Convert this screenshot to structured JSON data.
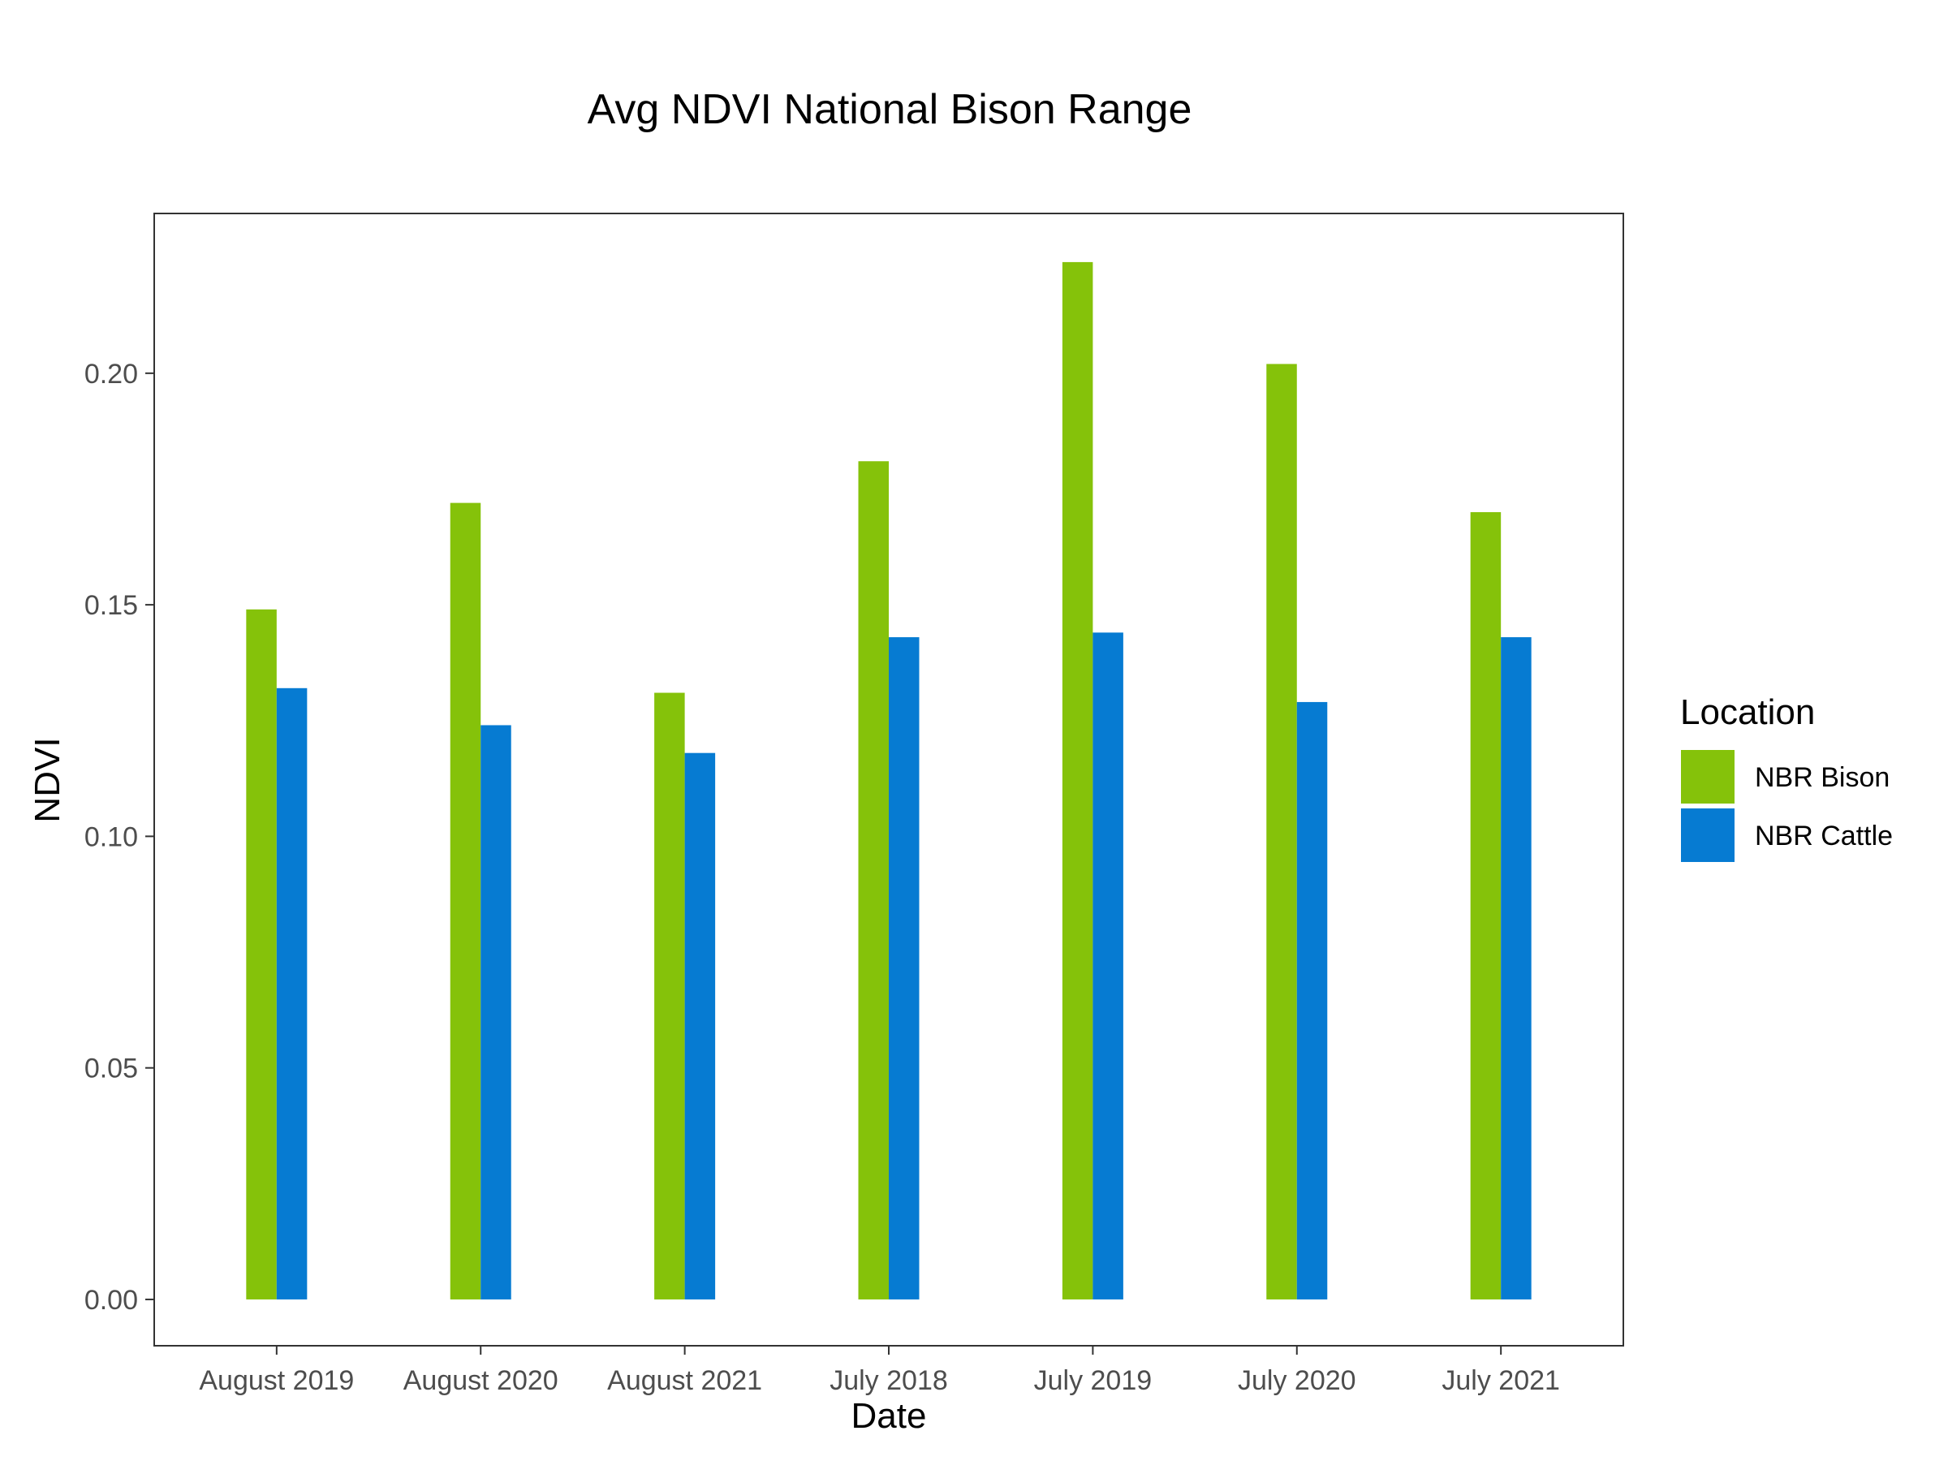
{
  "chart_data": {
    "type": "bar",
    "title": "Avg NDVI National Bison Range",
    "xlabel": "Date",
    "ylabel": "NDVI",
    "categories": [
      "August 2019",
      "August 2020",
      "August 2021",
      "July 2018",
      "July 2019",
      "July 2020",
      "July 2021"
    ],
    "series": [
      {
        "name": "NBR Bison",
        "color": "#85c20a",
        "values": [
          0.149,
          0.172,
          0.131,
          0.181,
          0.224,
          0.202,
          0.17
        ]
      },
      {
        "name": "NBR Cattle",
        "color": "#067bd2",
        "values": [
          0.132,
          0.124,
          0.118,
          0.143,
          0.144,
          0.129,
          0.143
        ]
      }
    ],
    "ylim": [
      -0.01,
      0.2345
    ],
    "yticks": [
      0.0,
      0.05,
      0.1,
      0.15,
      0.2
    ],
    "ytick_labels": [
      "0.00",
      "0.05",
      "0.10",
      "0.15",
      "0.20"
    ],
    "grid": false,
    "legend": {
      "title": "Location",
      "placement": "right"
    }
  }
}
